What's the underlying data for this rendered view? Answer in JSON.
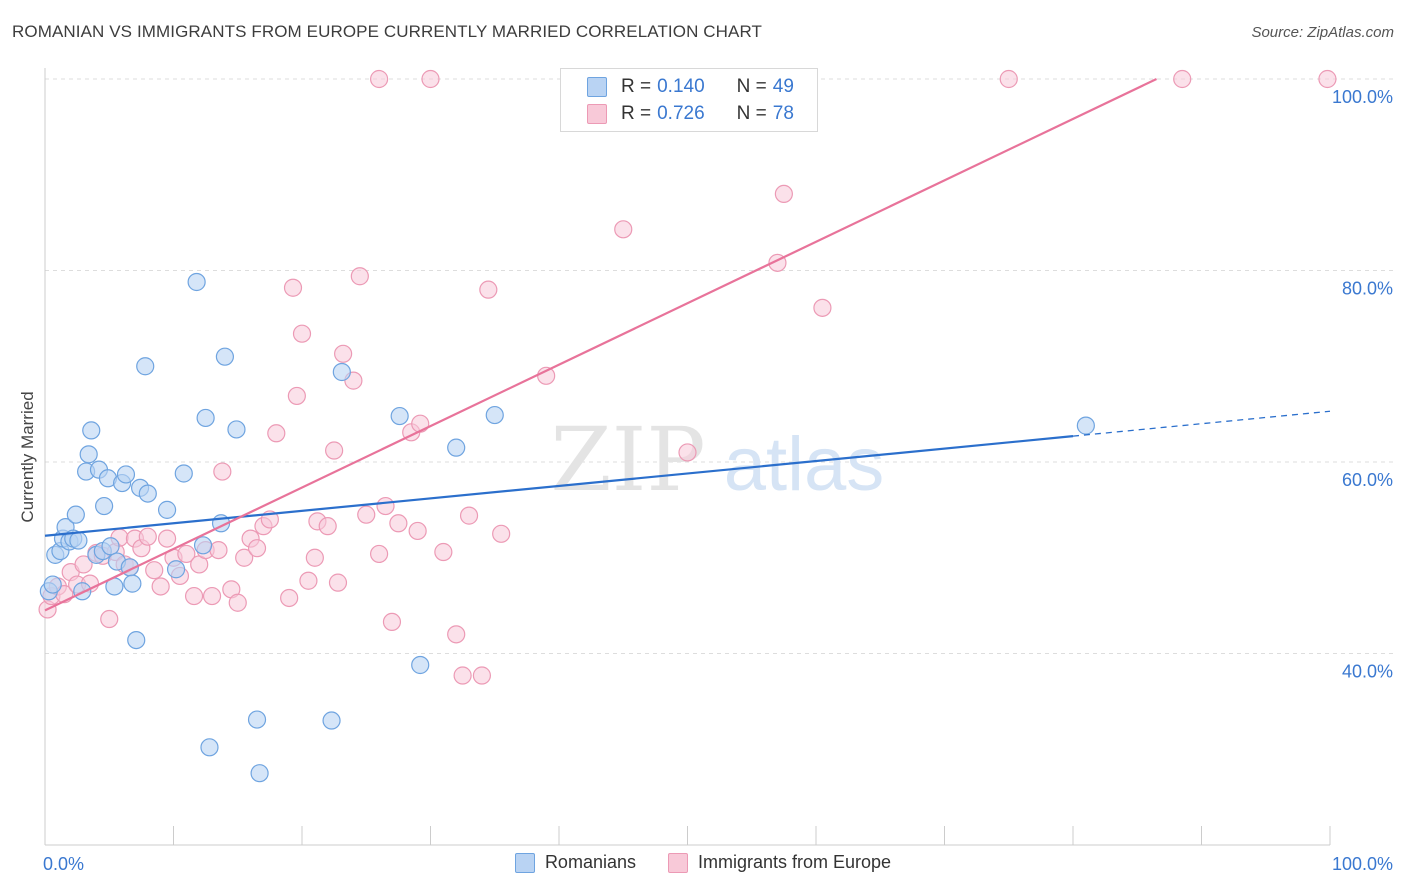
{
  "title": "ROMANIAN VS IMMIGRANTS FROM EUROPE CURRENTLY MARRIED CORRELATION CHART",
  "source": "Source: ZipAtlas.com",
  "watermark": {
    "zip": "ZIP",
    "atlas": "atlas"
  },
  "colors": {
    "blue_stroke": "#6fa4e0",
    "blue_fill": "#b9d3f3",
    "blue_line": "#2b6fcc",
    "pink_stroke": "#ec9ab5",
    "pink_fill": "#f8c9d8",
    "pink_line": "#e8739a",
    "axis_text": "#3a78d0",
    "grid": "#dddddd"
  },
  "legend": {
    "rows": [
      {
        "r_label": "R = ",
        "r_value": "0.140",
        "n_label": "N = ",
        "n_value": "49"
      },
      {
        "r_label": "R = ",
        "r_value": "0.726",
        "n_label": "N = ",
        "n_value": "78"
      }
    ]
  },
  "bottom_legend": [
    "Romanians",
    "Immigrants from Europe"
  ],
  "chart_data": {
    "type": "scatter",
    "title": "ROMANIAN VS IMMIGRANTS FROM EUROPE CURRENTLY MARRIED CORRELATION CHART",
    "xlabel": "",
    "ylabel": "Currently Married",
    "xlim": [
      0,
      100
    ],
    "ylim": [
      20,
      100
    ],
    "x_tick_labels": [
      "0.0%",
      "100.0%"
    ],
    "y_ticks": [
      40,
      60,
      80,
      100
    ],
    "y_tick_labels": [
      "40.0%",
      "60.0%",
      "80.0%",
      "100.0%"
    ],
    "grid": true,
    "legend_position": "top-center",
    "series": [
      {
        "name": "Romanians",
        "r": 0.14,
        "n": 49,
        "trend": {
          "x0": 0,
          "y0": 52.3,
          "x1": 80,
          "y1": 62.7,
          "dashed_to_x": 100,
          "dashed_to_y": 65.3
        },
        "points": [
          [
            0.3,
            46.5
          ],
          [
            0.6,
            47.2
          ],
          [
            0.8,
            50.3
          ],
          [
            1.2,
            50.7
          ],
          [
            1.4,
            52.0
          ],
          [
            1.6,
            53.2
          ],
          [
            1.9,
            51.7
          ],
          [
            2.2,
            52.0
          ],
          [
            2.4,
            54.5
          ],
          [
            2.6,
            51.8
          ],
          [
            2.9,
            46.5
          ],
          [
            3.2,
            59.0
          ],
          [
            3.4,
            60.8
          ],
          [
            3.6,
            63.3
          ],
          [
            4.0,
            50.3
          ],
          [
            4.2,
            59.2
          ],
          [
            4.5,
            50.7
          ],
          [
            4.6,
            55.4
          ],
          [
            4.9,
            58.3
          ],
          [
            5.1,
            51.2
          ],
          [
            5.4,
            47.0
          ],
          [
            5.6,
            49.6
          ],
          [
            6.0,
            57.8
          ],
          [
            6.3,
            58.7
          ],
          [
            6.6,
            49.0
          ],
          [
            6.8,
            47.3
          ],
          [
            7.1,
            41.4
          ],
          [
            7.4,
            57.3
          ],
          [
            7.8,
            70.0
          ],
          [
            8.0,
            56.7
          ],
          [
            9.5,
            55.0
          ],
          [
            10.2,
            48.8
          ],
          [
            10.8,
            58.8
          ],
          [
            11.8,
            78.8
          ],
          [
            12.3,
            51.3
          ],
          [
            12.5,
            64.6
          ],
          [
            12.8,
            30.2
          ],
          [
            13.7,
            53.6
          ],
          [
            14.0,
            71.0
          ],
          [
            14.9,
            63.4
          ],
          [
            16.5,
            33.1
          ],
          [
            16.7,
            27.5
          ],
          [
            22.3,
            33.0
          ],
          [
            23.1,
            69.4
          ],
          [
            27.6,
            64.8
          ],
          [
            29.2,
            38.8
          ],
          [
            32.0,
            61.5
          ],
          [
            35.0,
            64.9
          ],
          [
            81.0,
            63.8
          ]
        ]
      },
      {
        "name": "Immigrants from Europe",
        "r": 0.726,
        "n": 78,
        "trend": {
          "x0": 0,
          "y0": 44.5,
          "x1": 86.5,
          "y1": 100
        },
        "points": [
          [
            0.2,
            44.6
          ],
          [
            0.5,
            46.0
          ],
          [
            1.0,
            47.0
          ],
          [
            1.5,
            46.2
          ],
          [
            2.0,
            48.5
          ],
          [
            2.5,
            47.2
          ],
          [
            3.0,
            49.3
          ],
          [
            3.5,
            47.3
          ],
          [
            4.0,
            50.5
          ],
          [
            4.5,
            50.2
          ],
          [
            5.0,
            43.6
          ],
          [
            5.5,
            50.6
          ],
          [
            5.8,
            52.1
          ],
          [
            6.2,
            49.3
          ],
          [
            6.6,
            49.0
          ],
          [
            7.0,
            52.0
          ],
          [
            7.5,
            51.0
          ],
          [
            8.0,
            52.2
          ],
          [
            8.5,
            48.7
          ],
          [
            9.0,
            47.0
          ],
          [
            9.5,
            52.0
          ],
          [
            10.0,
            50.0
          ],
          [
            10.5,
            48.1
          ],
          [
            11.0,
            50.4
          ],
          [
            11.6,
            46.0
          ],
          [
            12.0,
            49.3
          ],
          [
            12.5,
            50.8
          ],
          [
            13.0,
            46.0
          ],
          [
            13.5,
            50.8
          ],
          [
            13.8,
            59.0
          ],
          [
            14.5,
            46.7
          ],
          [
            15.0,
            45.3
          ],
          [
            15.5,
            50.0
          ],
          [
            16.0,
            52.0
          ],
          [
            16.5,
            51.0
          ],
          [
            17.0,
            53.3
          ],
          [
            17.5,
            54.0
          ],
          [
            18.0,
            63.0
          ],
          [
            19.0,
            45.8
          ],
          [
            19.3,
            78.2
          ],
          [
            19.6,
            66.9
          ],
          [
            20.0,
            73.4
          ],
          [
            20.5,
            47.6
          ],
          [
            21.0,
            50.0
          ],
          [
            21.2,
            53.8
          ],
          [
            22.0,
            53.3
          ],
          [
            22.5,
            61.2
          ],
          [
            22.8,
            47.4
          ],
          [
            23.2,
            71.3
          ],
          [
            24.0,
            68.5
          ],
          [
            24.5,
            79.4
          ],
          [
            25.0,
            54.5
          ],
          [
            26.0,
            50.4
          ],
          [
            26.5,
            55.4
          ],
          [
            27.0,
            43.3
          ],
          [
            27.5,
            53.6
          ],
          [
            28.5,
            63.1
          ],
          [
            29.0,
            52.8
          ],
          [
            29.2,
            64.0
          ],
          [
            31.0,
            50.6
          ],
          [
            32.0,
            42.0
          ],
          [
            32.5,
            37.7
          ],
          [
            33.0,
            54.4
          ],
          [
            34.0,
            37.7
          ],
          [
            34.5,
            78.0
          ],
          [
            35.5,
            52.5
          ],
          [
            39.0,
            69.0
          ],
          [
            45.0,
            84.3
          ],
          [
            50.0,
            61.0
          ],
          [
            57.0,
            80.8
          ],
          [
            57.5,
            88.0
          ],
          [
            60.5,
            76.1
          ],
          [
            26.0,
            100.0
          ],
          [
            30.0,
            100.0
          ],
          [
            46.8,
            100.0
          ],
          [
            75.0,
            100.0
          ],
          [
            88.5,
            100.0
          ],
          [
            99.8,
            100.0
          ]
        ]
      }
    ]
  }
}
